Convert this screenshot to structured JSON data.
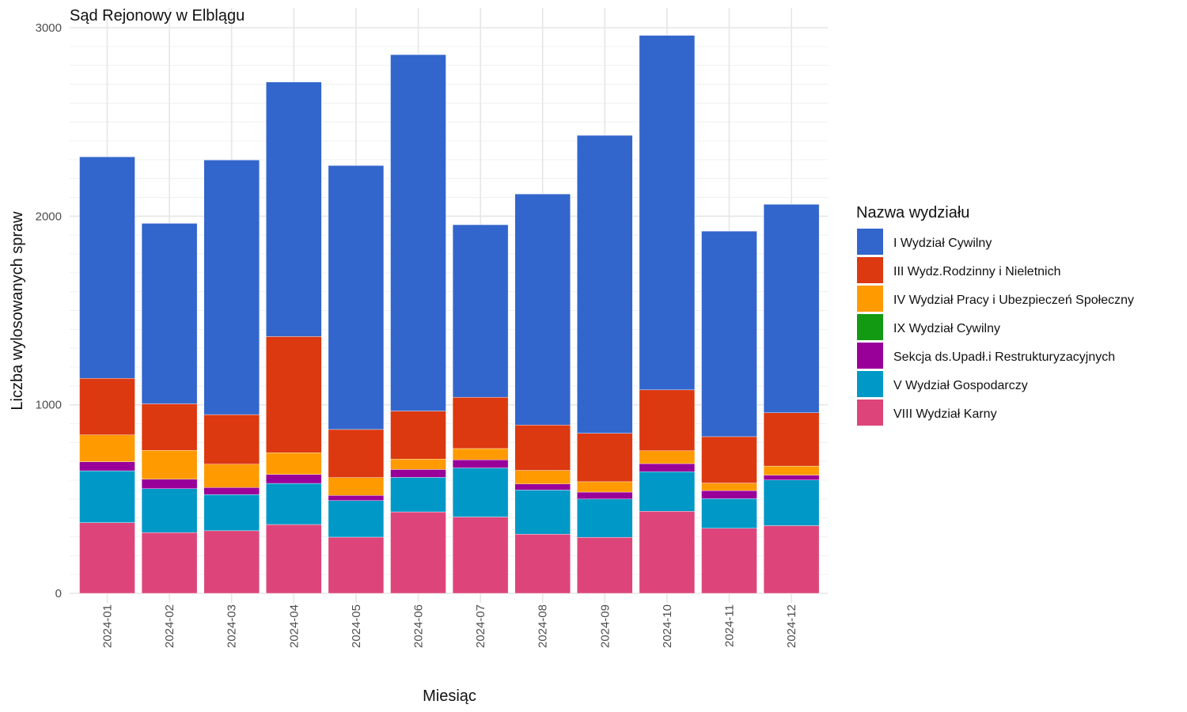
{
  "chart_data": {
    "type": "bar",
    "stacked": true,
    "title": "Sąd Rejonowy w Elblągu",
    "xlabel": "Miesiąc",
    "ylabel": "Liczba wylosowanych spraw",
    "ylim": [
      0,
      3000
    ],
    "yticks": [
      "0",
      "1000",
      "2000",
      "3000"
    ],
    "grid": true,
    "legend_title": "Nazwa wydziału",
    "legend_position": "right",
    "categories": [
      "2024-01",
      "2024-02",
      "2024-03",
      "2024-04",
      "2024-05",
      "2024-06",
      "2024-07",
      "2024-08",
      "2024-09",
      "2024-10",
      "2024-11",
      "2024-12"
    ],
    "series": [
      {
        "name": "VIII Wydział Karny",
        "color": "#DD457A",
        "values": [
          375,
          322,
          332,
          365,
          298,
          432,
          405,
          314,
          297,
          435,
          345,
          359
        ]
      },
      {
        "name": "V Wydział Gospodarczy",
        "color": "#0098C6",
        "values": [
          275,
          233,
          192,
          218,
          194,
          183,
          260,
          234,
          203,
          210,
          157,
          242
        ]
      },
      {
        "name": "Sekcja ds.Upadł.i Restrukturyzacyjnych",
        "color": "#990099",
        "values": [
          48,
          50,
          37,
          48,
          27,
          42,
          43,
          32,
          37,
          43,
          43,
          26
        ]
      },
      {
        "name": "IX Wydział Cywilny",
        "color": "#129A12",
        "values": [
          0,
          0,
          0,
          0,
          0,
          0,
          0,
          0,
          0,
          0,
          0,
          0
        ]
      },
      {
        "name": "IV Wydział Pracy i Ubezpieczeń Społeczny",
        "color": "#FF9A00",
        "values": [
          142,
          153,
          124,
          115,
          95,
          55,
          60,
          72,
          55,
          68,
          40,
          48
        ]
      },
      {
        "name": "III Wydz.Rodzinny i Nieletnich",
        "color": "#DC3910",
        "values": [
          300,
          247,
          263,
          616,
          255,
          255,
          272,
          241,
          257,
          323,
          246,
          283
        ]
      },
      {
        "name": "I Wydział Cywilny",
        "color": "#3366CC",
        "values": [
          1175,
          957,
          1350,
          1350,
          1400,
          1890,
          915,
          1225,
          1580,
          1880,
          1090,
          1105
        ]
      }
    ],
    "legend_order": [
      "I Wydział Cywilny",
      "III Wydz.Rodzinny i Nieletnich",
      "IV Wydział Pracy i Ubezpieczeń Społeczny",
      "IX Wydział Cywilny",
      "Sekcja ds.Upadł.i Restrukturyzacyjnych",
      "V Wydział Gospodarczy",
      "VIII Wydział Karny"
    ]
  }
}
